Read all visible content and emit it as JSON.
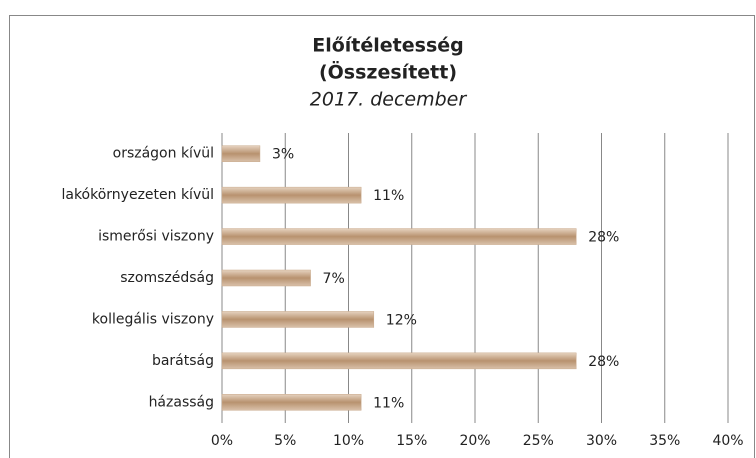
{
  "chart_data": {
    "type": "bar",
    "orientation": "horizontal",
    "title": [
      "Előítéletesség",
      "(Összesített)"
    ],
    "subtitle": "2017. december",
    "categories": [
      "országon kívül",
      "lakókörnyezeten kívül",
      "ismerősi viszony",
      "szomszédság",
      "kollegális viszony",
      "barátság",
      "házasság"
    ],
    "values": [
      3,
      11,
      28,
      7,
      12,
      28,
      11
    ],
    "value_labels": [
      "3%",
      "11%",
      "28%",
      "7%",
      "12%",
      "28%",
      "11%"
    ],
    "color": "#c9a98b",
    "xlim": [
      0,
      40
    ],
    "xticks": [
      {
        "value": 0,
        "label": "0%"
      },
      {
        "value": 5,
        "label": "5%"
      },
      {
        "value": 10,
        "label": "10%"
      },
      {
        "value": 15,
        "label": "15%"
      },
      {
        "value": 20,
        "label": "20%"
      },
      {
        "value": 25,
        "label": "25%"
      },
      {
        "value": 30,
        "label": "30%"
      },
      {
        "value": 35,
        "label": "35%"
      },
      {
        "value": 40,
        "label": "40%"
      }
    ],
    "grid": true
  }
}
